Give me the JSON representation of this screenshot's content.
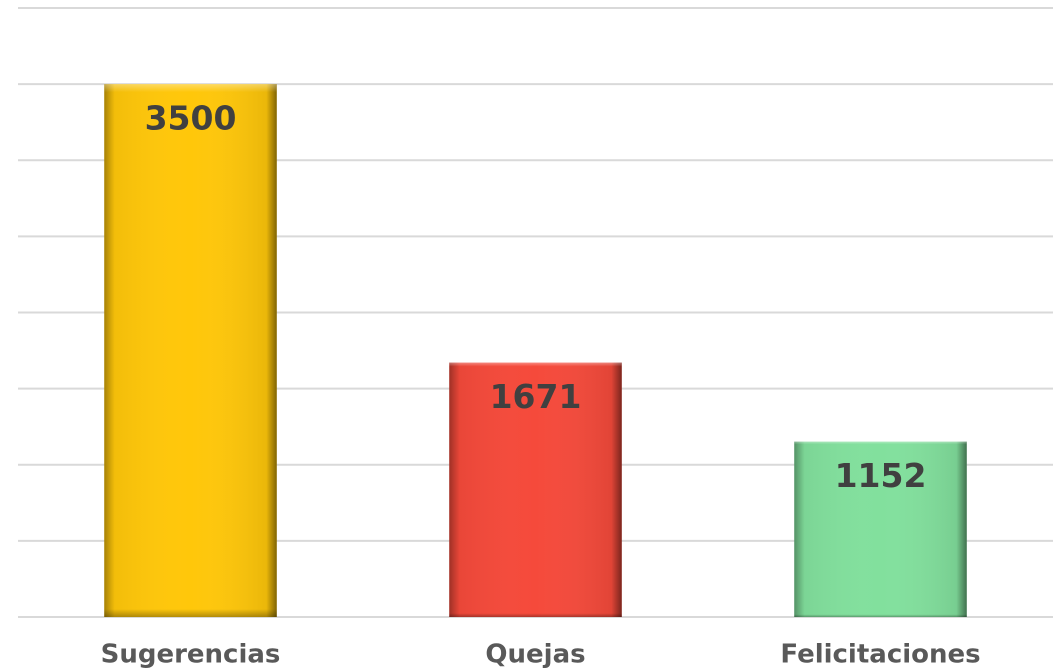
{
  "chart_data": {
    "type": "bar",
    "categories": [
      "Sugerencias",
      "Quejas",
      "Felicitaciones"
    ],
    "values": [
      3500,
      1671,
      1152
    ],
    "colors": [
      "#ffc70a",
      "#f54a3b",
      "#82e09d"
    ],
    "ylim": [
      0,
      4000
    ],
    "yticks": [
      0,
      500,
      1000,
      1500,
      2000,
      2500,
      3000,
      3500,
      4000
    ],
    "grid": true
  }
}
